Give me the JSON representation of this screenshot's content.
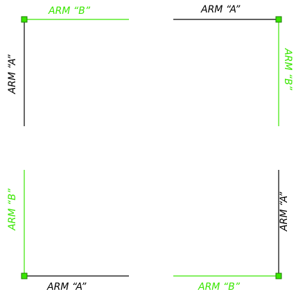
{
  "colors": {
    "arm_a": "#000000",
    "arm_b": "#39e600",
    "grip_fill": "#39e600",
    "grip_stroke": "#1a7a00",
    "background": "#ffffff"
  },
  "corners": {
    "top_left": {
      "top_label": "ARM “B”",
      "side_label": "ARM “A”"
    },
    "top_right": {
      "top_label": "ARM “A”",
      "side_label": "ARM “B”"
    },
    "bottom_left": {
      "side_label": "ARM “B”",
      "bottom_label": "ARM “A”"
    },
    "bottom_right": {
      "side_label": "ARM “A”",
      "bottom_label": "ARM “B”"
    }
  }
}
